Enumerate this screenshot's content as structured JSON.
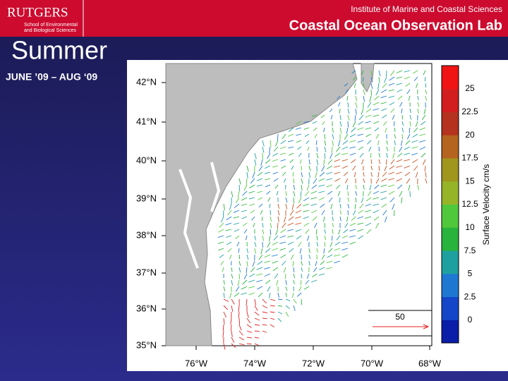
{
  "header": {
    "logo": "RUTGERS",
    "logo_sub_1": "School of Environmental",
    "logo_sub_2": "and Biological Sciences",
    "institute": "Institute of Marine and Coastal Sciences",
    "lab": "Coastal Ocean Observation Lab"
  },
  "slide": {
    "title": "Summer",
    "subtitle": "JUNE ’09 – AUG ‘09"
  },
  "map": {
    "lat_labels": [
      "42°N",
      "41°N",
      "40°N",
      "39°N",
      "38°N",
      "37°N",
      "36°N",
      "35°N"
    ],
    "lon_labels": [
      "76°W",
      "74°W",
      "72°W",
      "70°W",
      "68°W"
    ],
    "colorbar": {
      "label": "Surface Velocity cm/s",
      "ticks": [
        0,
        2.5,
        5,
        7.5,
        10,
        12.5,
        15,
        17.5,
        20,
        22.5,
        25
      ],
      "colors": [
        "#0a1ea8",
        "#1446c8",
        "#1e78d2",
        "#1ea0a0",
        "#28b43c",
        "#50c83c",
        "#96b428",
        "#a0961e",
        "#b4641e",
        "#b4321e",
        "#d21e1e",
        "#f01414"
      ]
    },
    "scale_label": "50"
  }
}
